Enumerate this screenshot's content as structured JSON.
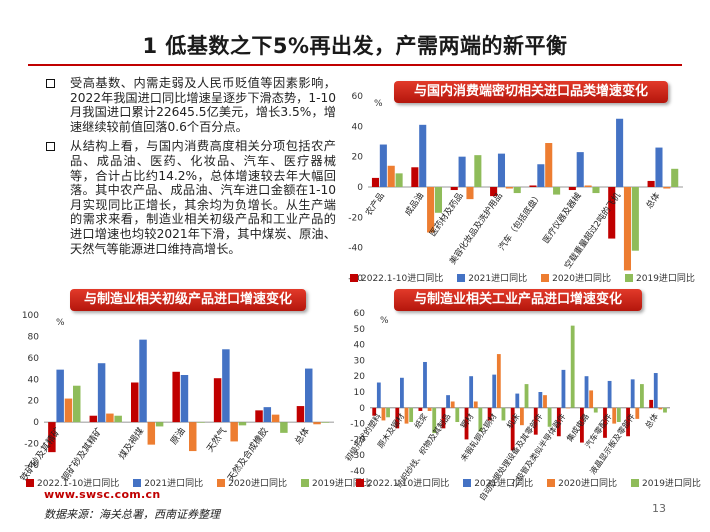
{
  "title": "1 低基数之下5%再出发，产需两端的新平衡",
  "bullets": [
    "受高基数、内需走弱及人民币贬值等因素影响，2022年我国进口同比增速呈逐步下滑态势，1-10月我国进口累计22645.5亿美元，增长3.5%，增速继续较前值回落0.6个百分点。",
    "从结构上看，与国内消费高度相关分项包括农产品、成品油、医药、化妆品、汽车、医疗器械等，合计占比约14.2%，总体增速较去年大幅回落。其中农产品、成品油、汽车进口金额在1-10月实现同比正增长，其余均为负增长。从生产端的需求来看，制造业相关初级产品和工业产品的进口增速也均较2021年下滑，其中煤炭、原油、天然气等能源进口维持高增长。"
  ],
  "colors": {
    "s2022": "#c00000",
    "s2021": "#4472c4",
    "s2020": "#ed7d31",
    "s2019": "#8fbc5a",
    "accent": "#c00000"
  },
  "series_names": [
    "2022.1-10进口同比",
    "2021进口同比",
    "2020进口同比",
    "2019进口同比"
  ],
  "charts": {
    "consumer": {
      "banner": "与国内消费端密切相关进口品类增速变化",
      "chart_data": {
        "type": "bar",
        "unit": "%",
        "ylim": [
          -60,
          60
        ],
        "ticks": [
          60,
          40,
          20,
          0,
          -20,
          -40,
          -60
        ],
        "categories": [
          "农产品",
          "成品油",
          "医药材及药品",
          "美容化妆品及洗护用品",
          "汽车（包括底盘）",
          "医疗仪器及器械",
          "空载重量超过2吨的飞机",
          "总体"
        ],
        "series": [
          {
            "name": "2022.1-10进口同比",
            "values": [
              6,
              13,
              -2,
              -6,
              1,
              -2,
              -34,
              4
            ]
          },
          {
            "name": "2021进口同比",
            "values": [
              28,
              41,
              20,
              22,
              15,
              23,
              45,
              26
            ]
          },
          {
            "name": "2020进口同比",
            "values": [
              14,
              -30,
              -8,
              -1,
              29,
              1,
              -55,
              -1
            ]
          },
          {
            "name": "2019进口同比",
            "values": [
              9,
              -17,
              21,
              -4,
              -5,
              -4,
              -42,
              12
            ]
          }
        ]
      }
    },
    "primary": {
      "banner": "与制造业相关初级产品进口增速变化",
      "chart_data": {
        "type": "bar",
        "unit": "%",
        "ylim": [
          -40,
          100
        ],
        "ticks": [
          100,
          80,
          60,
          40,
          20,
          0,
          -20,
          -40
        ],
        "categories": [
          "铁矿砂及其精矿",
          "铜矿砂及其精矿",
          "煤及褐煤",
          "原油",
          "天然气",
          "天然及合成橡胶",
          "总体"
        ],
        "series": [
          {
            "name": "2022.1-10进口同比",
            "values": [
              -28,
              6,
              37,
              47,
              41,
              11,
              15
            ]
          },
          {
            "name": "2021进口同比",
            "values": [
              49,
              55,
              77,
              44,
              68,
              14,
              50
            ]
          },
          {
            "name": "2020进口同比",
            "values": [
              22,
              8,
              -21,
              -27,
              -18,
              7,
              -2
            ]
          },
          {
            "name": "2019进口同比",
            "values": [
              34,
              6,
              -4,
              0,
              -3,
              -10,
              0
            ]
          }
        ]
      }
    },
    "industrial": {
      "banner": "与制造业相关工业产品进口增速变化",
      "chart_data": {
        "type": "bar",
        "unit": "%",
        "ylim": [
          -40,
          60
        ],
        "ticks": [
          60,
          50,
          40,
          30,
          20,
          10,
          0,
          -10,
          -20,
          -30,
          -40
        ],
        "categories": [
          "初级形状的塑料",
          "原木及锯材",
          "纸浆",
          "纺织纱线、织物及其制品",
          "钢材",
          "未锻轧铜及铜材",
          "机床",
          "自动数据处理设备及其零部件",
          "二极管及类似半导体器件",
          "集成电路",
          "汽车零配件",
          "液晶显示板及零部件",
          "总体"
        ],
        "series": [
          {
            "name": "2022.1-10进口同比",
            "values": [
              -5,
              -13,
              -2,
              -13,
              -20,
              -8,
              -27,
              -17,
              -18,
              -22,
              -19,
              -18,
              5
            ]
          },
          {
            "name": "2021进口同比",
            "values": [
              16,
              19,
              29,
              8,
              20,
              21,
              9,
              10,
              24,
              20,
              17,
              18,
              22
            ]
          },
          {
            "name": "2020进口同比",
            "values": [
              -8,
              -10,
              -2,
              4,
              4,
              34,
              -11,
              8,
              0,
              11,
              -10,
              -7,
              -1
            ]
          },
          {
            "name": "2019进口同比",
            "values": [
              -6,
              -9,
              -16,
              -9,
              -15,
              -8,
              15,
              -12,
              52,
              -3,
              -9,
              15,
              -3
            ]
          }
        ]
      }
    }
  },
  "footer": {
    "url": "www.swsc.com.cn",
    "source": "数据来源：海关总署，西南证券整理",
    "page": "13"
  }
}
